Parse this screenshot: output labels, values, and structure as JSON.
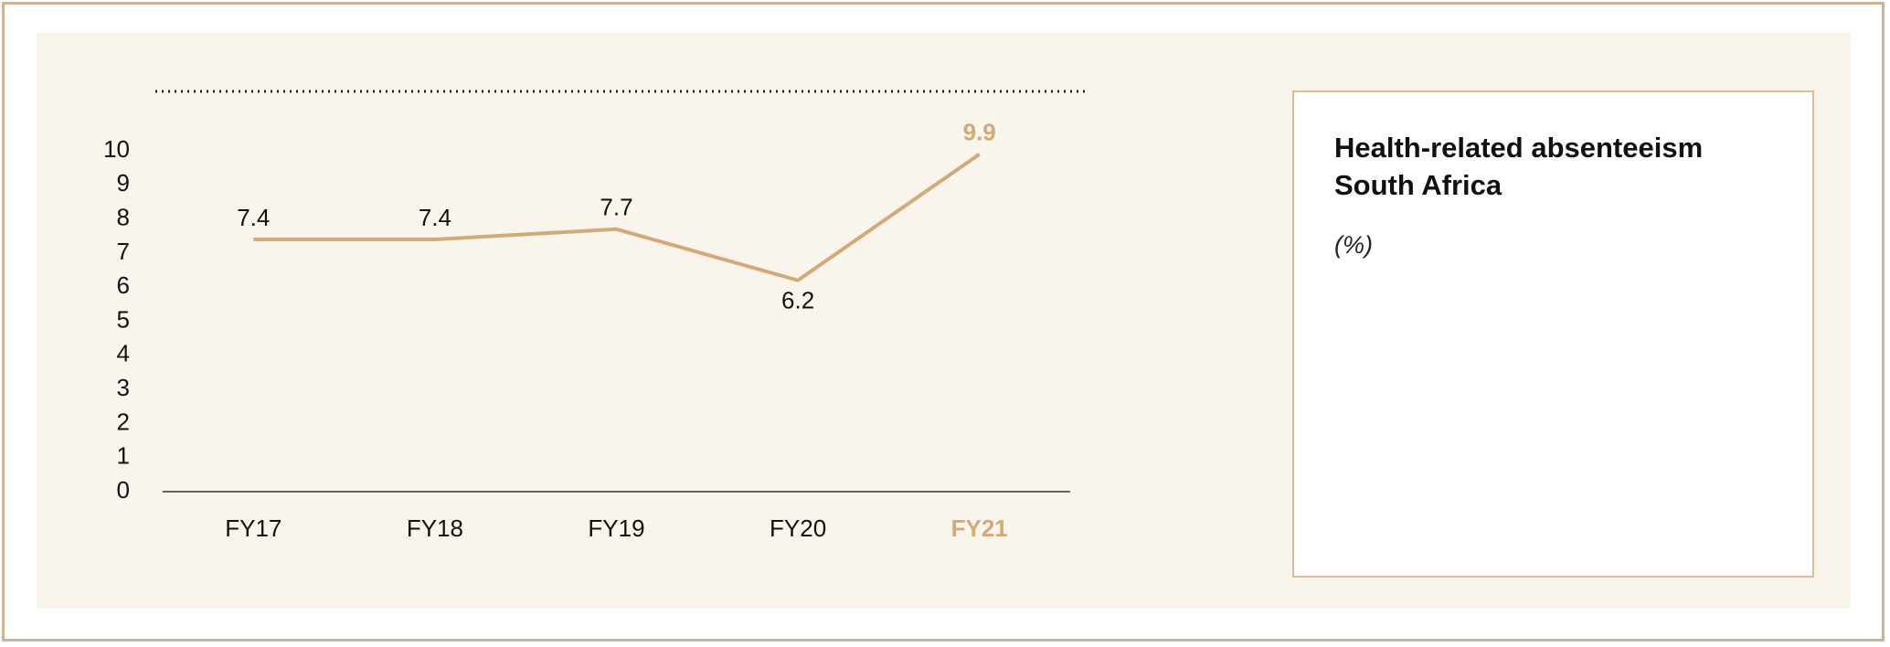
{
  "chart_data": {
    "type": "line",
    "title": "Health-related absenteeism South Africa",
    "subtitle": "(%)",
    "categories": [
      "FY17",
      "FY18",
      "FY19",
      "FY20",
      "FY21"
    ],
    "values": [
      7.4,
      7.4,
      7.7,
      6.2,
      9.9
    ],
    "color": "#d2aa78",
    "highlight_index": 4,
    "ylim": [
      0,
      10
    ],
    "yticks": [
      0,
      1,
      2,
      3,
      4,
      5,
      6,
      7,
      8,
      9,
      10
    ],
    "grid": false
  }
}
